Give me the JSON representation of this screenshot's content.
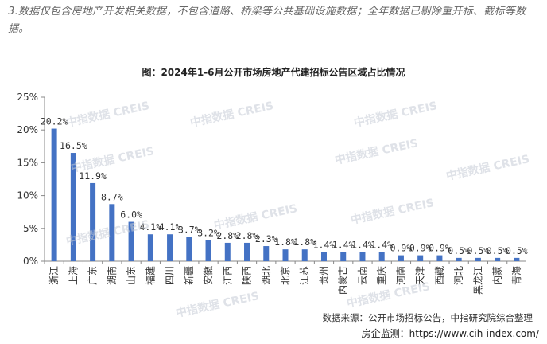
{
  "note": "3.数据仅包含房地产开发相关数据，不包含道路、桥梁等公共基础设施数据；全年数据已剔除重开标、截标等数据。",
  "source": "数据来源：公开市场招标公告，中指研究院综合整理",
  "footer": "房企监测：https://www.cih-index.com/",
  "watermark": "中指数据 CREIS",
  "colors": {
    "bar": "#4472c4",
    "axis": "#888888",
    "text": "#333333"
  },
  "chart_data": {
    "type": "bar",
    "title": "图：2024年1-6月公开市场房地产代建招标公告区域占比情况",
    "xlabel": "",
    "ylabel": "",
    "ylim": [
      0,
      25
    ],
    "yticks": [
      "0%",
      "5%",
      "10%",
      "15%",
      "20%",
      "25%"
    ],
    "categories": [
      "浙江",
      "上海",
      "广东",
      "湖南",
      "山东",
      "福建",
      "四川",
      "新疆",
      "安徽",
      "江西",
      "陕西",
      "湖北",
      "北京",
      "江苏",
      "贵州",
      "内蒙古",
      "云南",
      "重庆",
      "河南",
      "天津",
      "西藏",
      "河北",
      "黑龙江",
      "内蒙",
      "青海"
    ],
    "values": [
      20.2,
      16.5,
      11.9,
      8.7,
      6.0,
      4.1,
      4.1,
      3.7,
      3.2,
      2.8,
      2.8,
      2.3,
      1.8,
      1.8,
      1.4,
      1.4,
      1.4,
      1.4,
      0.9,
      0.9,
      0.9,
      0.5,
      0.5,
      0.5,
      0.5
    ],
    "labels": [
      "20.2%",
      "16.5%",
      "11.9%",
      "8.7%",
      "6.0%",
      "4.1%",
      "4.1%",
      "3.7%",
      "3.2%",
      "2.8%",
      "2.8%",
      "2.3%",
      "1.8%",
      "1.8%",
      "1.4%",
      "1.4%",
      "1.4%",
      "1.4%",
      "0.9%",
      "0.9%",
      "0.9%",
      "0.5%",
      "0.5%",
      "0.5%",
      "0.5%"
    ],
    "grid": false,
    "legend": "none"
  }
}
